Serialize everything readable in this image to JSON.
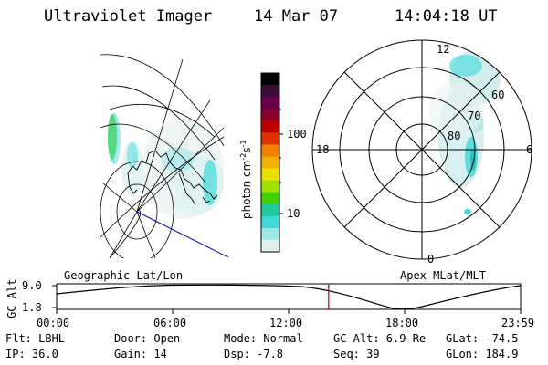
{
  "header": {
    "instrument": "Ultraviolet Imager",
    "date": "14 Mar 07",
    "time": "14:04:18 UT"
  },
  "colorbar": {
    "unit_label": "photon cm",
    "unit_exp1": "-2",
    "unit_mid": "s",
    "unit_exp2": "-1",
    "ticks": [
      "100",
      "10"
    ],
    "colors": [
      "#000000",
      "#3a0a3a",
      "#6a004a",
      "#8a0030",
      "#c00000",
      "#e03000",
      "#f08000",
      "#f0b000",
      "#e8e000",
      "#a0e000",
      "#40d000",
      "#20c8a0",
      "#40d8d8",
      "#a0e8e8",
      "#e0f0f0"
    ]
  },
  "polar": {
    "mlt_labels": {
      "top": "12",
      "left": "18",
      "right": "6",
      "bottom": "0"
    },
    "lat_labels": [
      "60",
      "70",
      "80"
    ]
  },
  "timeline": {
    "left_title": "Geographic Lat/Lon",
    "right_title": "Apex MLat/MLT",
    "y_label": "GC Alt",
    "y_ticks": [
      "9.0",
      "1.8"
    ],
    "x_ticks": [
      "00:00",
      "06:00",
      "12:00",
      "18:00",
      "23:59"
    ],
    "current_time_hours": 14.07
  },
  "info": {
    "row1": {
      "flt": "Flt: LBHL",
      "door": "Door: Open",
      "mode": "Mode: Normal",
      "gcalt": "GC Alt: 6.9 Re",
      "glat": "GLat: -74.5"
    },
    "row2": {
      "ip": "IP: 36.0",
      "gain": "Gain: 14",
      "dsp": "Dsp:  -7.8",
      "seq": "Seq: 39",
      "glon": "GLon: 184.9"
    }
  },
  "colors": {
    "marker": "#cc0000",
    "terminator": "#0000cc",
    "aurora_cyan": "#40d8d8",
    "aurora_green": "#40d000"
  }
}
